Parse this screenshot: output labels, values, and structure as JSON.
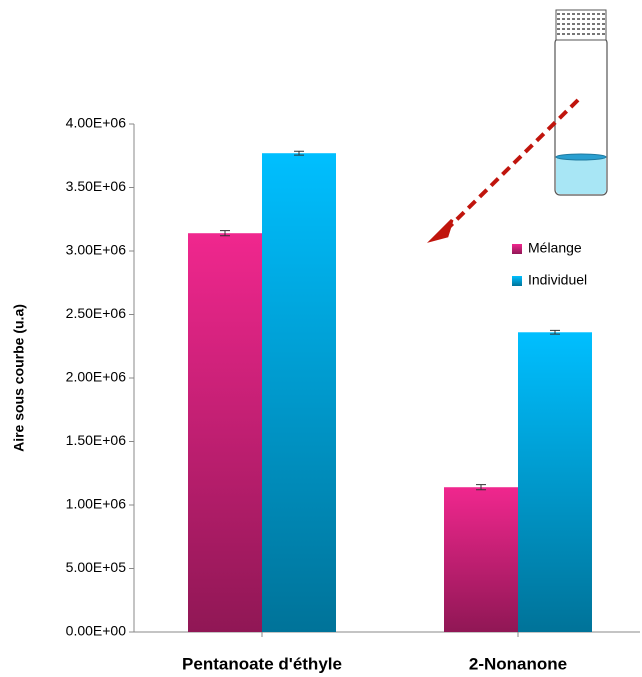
{
  "chart_data": {
    "type": "bar",
    "y_label": "Aire sous courbe (u.a)",
    "categories": [
      "Pentanoate d'éthyle",
      "2-Nonanone"
    ],
    "series": [
      {
        "name": "Mélange",
        "color": "#f0278e",
        "values": [
          3140000,
          1140000
        ],
        "errors": [
          20000,
          20000
        ]
      },
      {
        "name": "Individuel",
        "color": "#00bfff",
        "values": [
          3770000,
          2360000
        ],
        "errors": [
          15000,
          15000
        ]
      }
    ],
    "ylim": [
      0,
      4000000
    ],
    "yticks": [
      {
        "value": 0,
        "label": "0.00E+00"
      },
      {
        "value": 500000,
        "label": "5.00E+05"
      },
      {
        "value": 1000000,
        "label": "1.00E+06"
      },
      {
        "value": 1500000,
        "label": "1.50E+06"
      },
      {
        "value": 2000000,
        "label": "2.00E+06"
      },
      {
        "value": 2500000,
        "label": "2.50E+06"
      },
      {
        "value": 3000000,
        "label": "3.00E+06"
      },
      {
        "value": 3500000,
        "label": "3.50E+06"
      },
      {
        "value": 4000000,
        "label": "4.00E+06"
      }
    ],
    "legend": "upper right"
  }
}
